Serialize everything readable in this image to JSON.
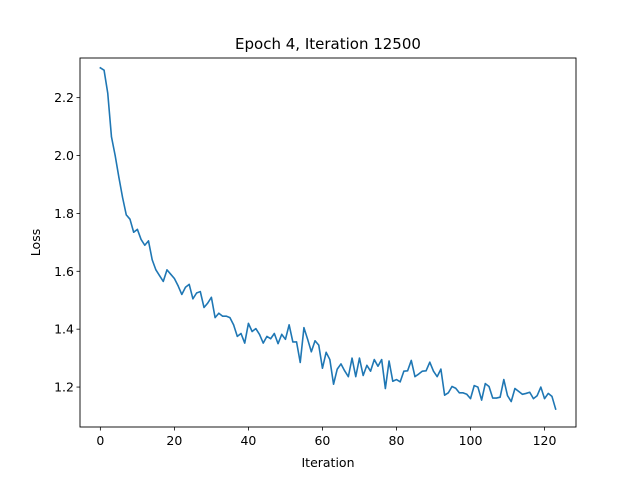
{
  "chart_data": {
    "type": "line",
    "title": "Epoch 4, Iteration 12500",
    "xlabel": "Iteration",
    "ylabel": "Loss",
    "xlim": [
      -5.5,
      128.5
    ],
    "ylim": [
      1.062,
      2.337
    ],
    "xticks": [
      0,
      20,
      40,
      60,
      80,
      100,
      120
    ],
    "yticks": [
      1.2,
      1.4,
      1.6,
      1.8,
      2.0,
      2.2
    ],
    "xtick_labels": [
      "0",
      "20",
      "40",
      "60",
      "80",
      "100",
      "120"
    ],
    "ytick_labels": [
      "1.2",
      "1.4",
      "1.6",
      "1.8",
      "2.0",
      "2.2"
    ],
    "grid": false,
    "legend": "none",
    "series": [
      {
        "color": "#1f77b4",
        "x": [
          0,
          1,
          2,
          3,
          4,
          5,
          6,
          7,
          8,
          9,
          10,
          11,
          12,
          13,
          14,
          15,
          16,
          17,
          18,
          19,
          20,
          21,
          22,
          23,
          24,
          25,
          26,
          27,
          28,
          29,
          30,
          31,
          32,
          33,
          34,
          35,
          36,
          37,
          38,
          39,
          40,
          41,
          42,
          43,
          44,
          45,
          46,
          47,
          48,
          49,
          50,
          51,
          52,
          53,
          54,
          55,
          56,
          57,
          58,
          59,
          60,
          61,
          62,
          63,
          64,
          65,
          66,
          67,
          68,
          69,
          70,
          71,
          72,
          73,
          74,
          75,
          76,
          77,
          78,
          79,
          80,
          81,
          82,
          83,
          84,
          85,
          86,
          87,
          88,
          89,
          90,
          91,
          92,
          93,
          94,
          95,
          96,
          97,
          98,
          99,
          100,
          101,
          102,
          103,
          104,
          105,
          106,
          107,
          108,
          109,
          110,
          111,
          112,
          113,
          114,
          115,
          116,
          117,
          118,
          119,
          120,
          121,
          122,
          123
        ],
        "values": [
          2.303,
          2.295,
          2.215,
          2.065,
          2.0,
          1.925,
          1.855,
          1.795,
          1.78,
          1.735,
          1.745,
          1.71,
          1.69,
          1.705,
          1.64,
          1.605,
          1.585,
          1.565,
          1.605,
          1.59,
          1.575,
          1.55,
          1.52,
          1.545,
          1.555,
          1.505,
          1.525,
          1.53,
          1.475,
          1.49,
          1.51,
          1.44,
          1.455,
          1.445,
          1.445,
          1.44,
          1.415,
          1.375,
          1.385,
          1.352,
          1.42,
          1.392,
          1.402,
          1.382,
          1.352,
          1.375,
          1.367,
          1.385,
          1.35,
          1.382,
          1.365,
          1.415,
          1.356,
          1.356,
          1.285,
          1.405,
          1.365,
          1.322,
          1.36,
          1.345,
          1.265,
          1.32,
          1.295,
          1.21,
          1.262,
          1.28,
          1.256,
          1.236,
          1.3,
          1.236,
          1.3,
          1.24,
          1.275,
          1.255,
          1.295,
          1.272,
          1.295,
          1.195,
          1.29,
          1.22,
          1.226,
          1.218,
          1.255,
          1.256,
          1.292,
          1.236,
          1.245,
          1.255,
          1.256,
          1.286,
          1.255,
          1.236,
          1.262,
          1.172,
          1.18,
          1.202,
          1.196,
          1.18,
          1.18,
          1.175,
          1.16,
          1.205,
          1.2,
          1.155,
          1.212,
          1.202,
          1.162,
          1.162,
          1.165,
          1.226,
          1.17,
          1.15,
          1.195,
          1.185,
          1.175,
          1.178,
          1.182,
          1.16,
          1.17,
          1.2,
          1.16,
          1.178,
          1.168,
          1.124
        ]
      }
    ]
  }
}
